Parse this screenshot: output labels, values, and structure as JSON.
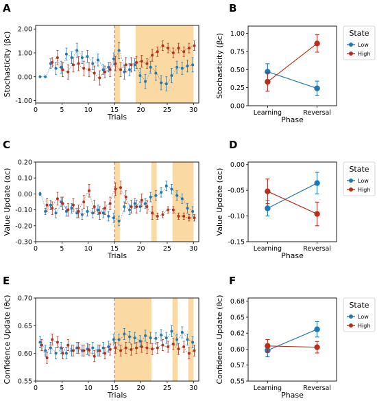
{
  "colors": {
    "low": "#1f77b4",
    "high": "#b2301c",
    "shade": "#fbd598",
    "divider": "#c0603a"
  },
  "panel_labels": [
    "A",
    "B",
    "C",
    "D",
    "E",
    "F"
  ],
  "legend": {
    "title": "State",
    "items": [
      "Low",
      "High"
    ]
  },
  "chart_data": [
    {
      "id": "A",
      "type": "line",
      "xlabel": "Trials",
      "ylabel": "Stochasticity (βc)",
      "xlim": [
        0,
        31
      ],
      "ylim": [
        -1.1,
        2.15
      ],
      "xticks": [
        0,
        5,
        10,
        15,
        20,
        25,
        30
      ],
      "yticks": [
        -1.0,
        0.0,
        1.0,
        2.0
      ],
      "ytick_labels": [
        "-1.00",
        "0.00",
        "1.00",
        "2.00"
      ],
      "reversal_trial": 15,
      "shaded_regions": [
        [
          15,
          16
        ],
        [
          19,
          30
        ]
      ],
      "x": [
        1,
        2,
        3,
        4,
        5,
        6,
        7,
        8,
        9,
        10,
        11,
        12,
        13,
        14,
        15,
        16,
        17,
        18,
        19,
        20,
        21,
        22,
        23,
        24,
        25,
        26,
        27,
        28,
        29,
        30
      ],
      "series": [
        {
          "name": "Low",
          "values": [
            0.0,
            0.0,
            0.55,
            0.35,
            0.4,
            0.95,
            0.8,
            1.1,
            0.8,
            0.85,
            0.55,
            0.7,
            0.3,
            0.4,
            0.75,
            1.1,
            0.2,
            0.3,
            0.5,
            0.05,
            -0.2,
            0.4,
            0.15,
            -0.25,
            -0.3,
            0.05,
            0.4,
            0.35,
            0.45,
            0.5
          ],
          "errors": [
            0.02,
            0.02,
            0.2,
            0.25,
            0.25,
            0.25,
            0.25,
            0.3,
            0.25,
            0.25,
            0.25,
            0.25,
            0.2,
            0.2,
            0.25,
            0.35,
            0.3,
            0.25,
            0.25,
            0.3,
            0.3,
            0.25,
            0.3,
            0.3,
            0.3,
            0.3,
            0.25,
            0.25,
            0.25,
            0.3
          ]
        },
        {
          "name": "High",
          "values": [
            null,
            null,
            0.6,
            0.8,
            0.3,
            0.2,
            0.5,
            0.55,
            0.35,
            0.3,
            0.15,
            -0.05,
            0.2,
            0.3,
            0.55,
            0.3,
            0.5,
            0.5,
            0.6,
            0.65,
            0.55,
            0.9,
            1.05,
            1.3,
            1.2,
            1.0,
            1.2,
            1.05,
            1.2,
            1.3
          ],
          "errors": [
            null,
            null,
            0.2,
            0.3,
            0.3,
            0.3,
            0.3,
            0.3,
            0.3,
            0.3,
            0.3,
            0.3,
            0.25,
            0.3,
            0.3,
            0.3,
            0.3,
            0.3,
            0.25,
            0.25,
            0.2,
            0.25,
            0.2,
            0.2,
            0.2,
            0.2,
            0.2,
            0.2,
            0.2,
            0.2
          ]
        }
      ]
    },
    {
      "id": "B",
      "type": "line",
      "xlabel": "Phase",
      "ylabel": "Stochasticity (βc)",
      "categories": [
        "Learning",
        "Reversal"
      ],
      "ylim": [
        0,
        1.1
      ],
      "yticks": [
        0,
        0.25,
        0.5,
        0.75,
        1.0
      ],
      "ytick_labels": [
        "0.00",
        "0.25",
        "0.50",
        "0.75",
        "1.00"
      ],
      "series": [
        {
          "name": "Low",
          "values": [
            0.47,
            0.24
          ],
          "errors": [
            0.11,
            0.1
          ]
        },
        {
          "name": "High",
          "values": [
            0.33,
            0.86
          ],
          "errors": [
            0.13,
            0.12
          ]
        }
      ]
    },
    {
      "id": "C",
      "type": "line",
      "xlabel": "Trials",
      "ylabel": "Value Update (αc)",
      "xlim": [
        0,
        31
      ],
      "ylim": [
        -0.3,
        0.2
      ],
      "xticks": [
        0,
        5,
        10,
        15,
        20,
        25,
        30
      ],
      "yticks": [
        -0.3,
        -0.2,
        -0.1,
        0.0,
        0.1,
        0.2
      ],
      "ytick_labels": [
        "-0.30",
        "-0.20",
        "-0.10",
        "0.00",
        "0.10",
        "0.20"
      ],
      "reversal_trial": 15,
      "shaded_regions": [
        [
          15,
          16
        ],
        [
          22,
          23
        ],
        [
          26,
          30
        ]
      ],
      "x": [
        1,
        2,
        3,
        4,
        5,
        6,
        7,
        8,
        9,
        10,
        11,
        12,
        13,
        14,
        15,
        16,
        17,
        18,
        19,
        20,
        21,
        22,
        23,
        24,
        25,
        26,
        27,
        28,
        29,
        30
      ],
      "series": [
        {
          "name": "Low",
          "values": [
            0.0,
            -0.11,
            -0.07,
            -0.12,
            -0.05,
            -0.11,
            -0.09,
            -0.12,
            -0.13,
            -0.11,
            -0.12,
            -0.1,
            -0.12,
            -0.14,
            -0.15,
            -0.17,
            -0.08,
            -0.1,
            -0.06,
            -0.08,
            -0.06,
            -0.02,
            -0.01,
            0.01,
            0.05,
            0.03,
            -0.01,
            -0.03,
            -0.09,
            -0.11
          ],
          "errors": [
            0.01,
            0.02,
            0.03,
            0.03,
            0.03,
            0.03,
            0.03,
            0.03,
            0.03,
            0.03,
            0.03,
            0.03,
            0.03,
            0.03,
            0.03,
            0.03,
            0.03,
            0.03,
            0.03,
            0.03,
            0.03,
            0.03,
            0.03,
            0.03,
            0.03,
            0.03,
            0.03,
            0.03,
            0.03,
            0.03
          ]
        },
        {
          "name": "High",
          "values": [
            null,
            -0.07,
            -0.09,
            -0.03,
            -0.06,
            -0.1,
            -0.07,
            -0.11,
            -0.05,
            0.02,
            -0.08,
            -0.12,
            -0.09,
            -0.06,
            0.03,
            0.04,
            -0.02,
            -0.08,
            -0.08,
            -0.04,
            -0.08,
            -0.12,
            -0.14,
            -0.13,
            -0.1,
            -0.1,
            -0.14,
            -0.14,
            -0.15,
            -0.15
          ],
          "errors": [
            null,
            0.04,
            0.04,
            0.04,
            0.04,
            0.04,
            0.04,
            0.04,
            0.04,
            0.04,
            0.04,
            0.04,
            0.04,
            0.04,
            0.04,
            0.04,
            0.04,
            0.04,
            0.04,
            0.04,
            0.04,
            0.04,
            0.02,
            0.02,
            0.02,
            0.02,
            0.02,
            0.02,
            0.02,
            0.02
          ]
        }
      ]
    },
    {
      "id": "D",
      "type": "line",
      "xlabel": "Phase",
      "ylabel": "Value Update (αc)",
      "categories": [
        "Learning",
        "Reversal"
      ],
      "ylim": [
        -0.15,
        0.005
      ],
      "yticks": [
        -0.15,
        -0.1,
        -0.05,
        0.0
      ],
      "ytick_labels": [
        "-0.15",
        "-0.10",
        "-0.05",
        "0.00"
      ],
      "series": [
        {
          "name": "Low",
          "values": [
            -0.085,
            -0.036
          ],
          "errors": [
            0.015,
            0.021
          ]
        },
        {
          "name": "High",
          "values": [
            -0.052,
            -0.096
          ],
          "errors": [
            0.024,
            0.023
          ]
        }
      ]
    },
    {
      "id": "E",
      "type": "line",
      "xlabel": "Trials",
      "ylabel": "Confidence Update (θc)",
      "xlim": [
        0,
        31
      ],
      "ylim": [
        0.55,
        0.7
      ],
      "xticks": [
        0,
        5,
        10,
        15,
        20,
        25,
        30
      ],
      "yticks": [
        0.55,
        0.6,
        0.65,
        0.7
      ],
      "ytick_labels": [
        "0.55",
        "0.60",
        "0.65",
        "0.70"
      ],
      "reversal_trial": 15,
      "shaded_regions": [
        [
          15,
          22
        ],
        [
          26,
          27
        ],
        [
          29,
          30
        ]
      ],
      "x": [
        1,
        2,
        3,
        4,
        5,
        6,
        7,
        8,
        9,
        10,
        11,
        12,
        13,
        14,
        15,
        16,
        17,
        18,
        19,
        20,
        21,
        22,
        23,
        24,
        25,
        26,
        27,
        28,
        29,
        30
      ],
      "series": [
        {
          "name": "Low",
          "values": [
            0.62,
            0.605,
            0.61,
            0.6,
            0.61,
            0.6,
            0.605,
            0.61,
            0.605,
            0.608,
            0.61,
            0.605,
            0.61,
            0.612,
            0.625,
            0.625,
            0.635,
            0.63,
            0.628,
            0.622,
            0.632,
            0.628,
            0.627,
            0.633,
            0.628,
            0.64,
            0.625,
            0.638,
            0.625,
            0.62
          ],
          "errors": [
            0.01,
            0.01,
            0.01,
            0.01,
            0.01,
            0.01,
            0.01,
            0.01,
            0.01,
            0.01,
            0.01,
            0.01,
            0.01,
            0.01,
            0.01,
            0.01,
            0.01,
            0.01,
            0.01,
            0.01,
            0.01,
            0.01,
            0.01,
            0.01,
            0.01,
            0.01,
            0.01,
            0.01,
            0.01,
            0.01
          ]
        },
        {
          "name": "High",
          "values": [
            0.615,
            0.592,
            0.625,
            0.62,
            0.6,
            0.615,
            0.605,
            0.61,
            0.605,
            0.606,
            0.595,
            0.605,
            0.6,
            0.607,
            0.61,
            0.605,
            0.61,
            0.607,
            0.61,
            0.612,
            0.61,
            0.608,
            0.61,
            0.615,
            0.612,
            0.617,
            0.608,
            0.612,
            0.6,
            0.605
          ],
          "errors": [
            0.01,
            0.01,
            0.01,
            0.01,
            0.01,
            0.01,
            0.01,
            0.01,
            0.01,
            0.01,
            0.01,
            0.01,
            0.01,
            0.01,
            0.01,
            0.01,
            0.01,
            0.01,
            0.01,
            0.01,
            0.01,
            0.01,
            0.01,
            0.01,
            0.01,
            0.01,
            0.01,
            0.01,
            0.01,
            0.01
          ]
        }
      ]
    },
    {
      "id": "F",
      "type": "line",
      "xlabel": "Phase",
      "ylabel": "Confidence Update (θc)",
      "categories": [
        "Learning",
        "Reversal"
      ],
      "ylim": [
        0.55,
        0.68
      ],
      "yticks": [
        0.55,
        0.575,
        0.6,
        0.625,
        0.65,
        0.675
      ],
      "ytick_labels": [
        "0.55",
        "0.57",
        "0.60",
        "0.62",
        "0.65",
        "0.68"
      ],
      "series": [
        {
          "name": "Low",
          "values": [
            0.598,
            0.631
          ],
          "errors": [
            0.01,
            0.012
          ]
        },
        {
          "name": "High",
          "values": [
            0.605,
            0.603
          ],
          "errors": [
            0.01,
            0.009
          ]
        }
      ]
    }
  ]
}
